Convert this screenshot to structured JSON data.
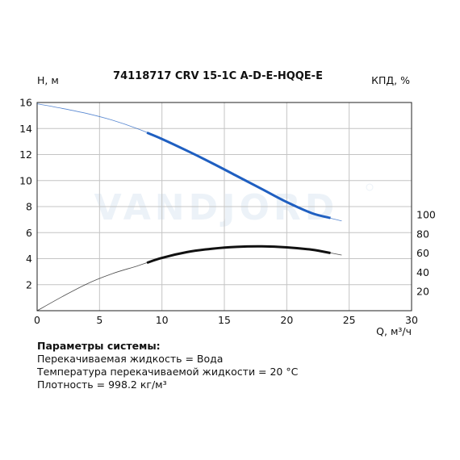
{
  "chart_data": {
    "type": "line",
    "title": "74118717 CRV 15-1C A-D-E-HQQE-E",
    "xlabel": "Q, м³/ч",
    "ylabel": "H, м",
    "y2label": "КПД, %",
    "xlim": [
      0,
      30
    ],
    "ylim": [
      0,
      16
    ],
    "y2lim": [
      0,
      100
    ],
    "xticks": [
      "0",
      "5",
      "10",
      "15",
      "20",
      "25",
      "30"
    ],
    "yticks": [
      "2",
      "4",
      "6",
      "8",
      "10",
      "12",
      "14",
      "16"
    ],
    "y2ticks": [
      "20",
      "40",
      "60",
      "80",
      "100"
    ],
    "grid": true,
    "series": [
      {
        "color": "#1f5fc1",
        "axis": "left",
        "x": [
          0,
          2,
          4,
          6,
          8,
          10,
          12,
          14,
          16,
          18,
          20,
          22,
          24.4
        ],
        "y": [
          15.9,
          15.55,
          15.15,
          14.65,
          14.0,
          13.2,
          12.3,
          11.35,
          10.35,
          9.35,
          8.35,
          7.5,
          6.9
        ],
        "operating_range": [
          8.8,
          23.5
        ]
      },
      {
        "color": "#111111",
        "axis": "right",
        "x": [
          0,
          2,
          4,
          6,
          8,
          10,
          12,
          14,
          16,
          18,
          20,
          22,
          24.4
        ],
        "y": [
          0,
          14.5,
          28,
          38.5,
          46.5,
          55,
          61,
          64.5,
          66.5,
          67,
          66,
          63.5,
          58
        ],
        "operating_range": [
          8.8,
          23.5
        ]
      }
    ]
  },
  "watermark": {
    "text": "VANDJORD"
  },
  "params": {
    "title": "Параметры системы:",
    "lines": [
      "Перекачиваемая жидкость = Вода",
      "Температура перекачиваемой жидкости = 20 °C",
      "Плотность = 998.2 кг/м³"
    ]
  }
}
